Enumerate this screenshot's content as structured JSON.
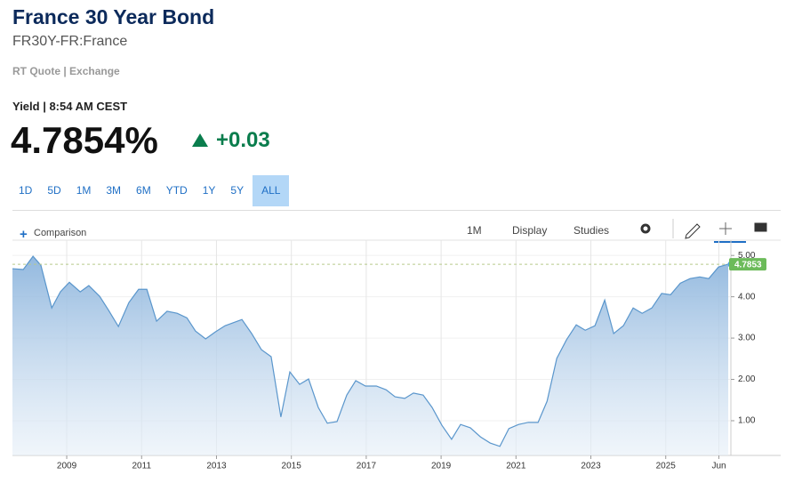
{
  "header": {
    "title": "France 30 Year Bond",
    "symbol": "FR30Y-FR:France",
    "source": "RT Quote | Exchange",
    "yield_time": "Yield | 8:54 AM CEST",
    "price": "4.7854%",
    "change": "+0.03"
  },
  "tabs": [
    "1D",
    "5D",
    "1M",
    "3M",
    "6M",
    "YTD",
    "1Y",
    "5Y",
    "ALL"
  ],
  "active_tab": "ALL",
  "toolbar": {
    "comparison": "Comparison",
    "interval": "1M",
    "display": "Display",
    "studies": "Studies"
  },
  "chart_data": {
    "type": "area",
    "color": "#5a96cc",
    "x": [
      2007.55,
      2007.84,
      2008.1,
      2008.31,
      2008.6,
      2008.83,
      2009.07,
      2009.36,
      2009.59,
      2009.88,
      2010.12,
      2010.38,
      2010.66,
      2010.92,
      2011.14,
      2011.4,
      2011.68,
      2011.95,
      2012.21,
      2012.44,
      2012.71,
      2012.97,
      2013.23,
      2013.44,
      2013.68,
      2013.94,
      2014.2,
      2014.46,
      2014.72,
      2014.96,
      2015.22,
      2015.46,
      2015.72,
      2015.96,
      2016.22,
      2016.48,
      2016.72,
      2016.98,
      2017.27,
      2017.53,
      2017.77,
      2018.03,
      2018.26,
      2018.52,
      2018.76,
      2019.02,
      2019.28,
      2019.52,
      2019.78,
      2020.05,
      2020.31,
      2020.57,
      2020.81,
      2021.07,
      2021.33,
      2021.59,
      2021.83,
      2022.09,
      2022.35,
      2022.61,
      2022.85,
      2023.11,
      2023.37,
      2023.61,
      2023.87,
      2024.13,
      2024.37,
      2024.63,
      2024.89,
      2025.13,
      2025.39,
      2025.65,
      2025.91,
      2026.15,
      2026.41,
      2026.67
    ],
    "values": [
      4.68,
      4.66,
      4.98,
      4.76,
      3.73,
      4.12,
      4.35,
      4.12,
      4.27,
      4.01,
      3.67,
      3.28,
      3.86,
      4.18,
      4.18,
      3.41,
      3.65,
      3.6,
      3.49,
      3.17,
      2.98,
      3.15,
      3.3,
      3.37,
      3.45,
      3.11,
      2.72,
      2.55,
      1.09,
      2.18,
      1.88,
      2.01,
      1.32,
      0.94,
      0.98,
      1.62,
      1.97,
      1.84,
      1.84,
      1.75,
      1.58,
      1.54,
      1.67,
      1.62,
      1.32,
      0.89,
      0.55,
      0.91,
      0.83,
      0.61,
      0.46,
      0.38,
      0.81,
      0.91,
      0.96,
      0.96,
      1.47,
      2.51,
      2.96,
      3.32,
      3.19,
      3.3,
      3.92,
      3.11,
      3.3,
      3.73,
      3.6,
      3.73,
      4.08,
      4.05,
      4.33,
      4.44,
      4.48,
      4.44,
      4.72,
      4.79
    ],
    "last_value": 4.7853,
    "xlim": [
      2007.55,
      2026.74
    ],
    "xticks": [
      {
        "value": 2009,
        "label": "2009"
      },
      {
        "value": 2011,
        "label": "2011"
      },
      {
        "value": 2013,
        "label": "2013"
      },
      {
        "value": 2015,
        "label": "2015"
      },
      {
        "value": 2017,
        "label": "2017"
      },
      {
        "value": 2019,
        "label": "2019"
      },
      {
        "value": 2021,
        "label": "2021"
      },
      {
        "value": 2023,
        "label": "2023"
      },
      {
        "value": 2025,
        "label": "2025"
      },
      {
        "value": 2026.42,
        "label": "Jun"
      }
    ],
    "ylim": [
      0.16,
      5.37
    ],
    "yticks": [
      {
        "value": 1,
        "label": "1.00"
      },
      {
        "value": 2,
        "label": "2.00"
      },
      {
        "value": 3,
        "label": "3.00"
      },
      {
        "value": 4,
        "label": "4.00"
      },
      {
        "value": 5,
        "label": "5.00"
      }
    ],
    "grid": true
  }
}
